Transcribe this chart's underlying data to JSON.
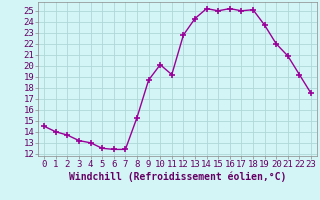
{
  "x": [
    0,
    1,
    2,
    3,
    4,
    5,
    6,
    7,
    8,
    9,
    10,
    11,
    12,
    13,
    14,
    15,
    16,
    17,
    18,
    19,
    20,
    21,
    22,
    23
  ],
  "y": [
    14.5,
    14.0,
    13.7,
    13.2,
    13.0,
    12.5,
    12.4,
    12.4,
    15.3,
    18.7,
    20.1,
    19.2,
    22.8,
    24.3,
    25.2,
    25.0,
    25.2,
    25.0,
    25.1,
    23.7,
    22.0,
    20.9,
    19.2,
    17.5
  ],
  "line_color": "#990099",
  "marker": "+",
  "marker_size": 5,
  "linewidth": 1.0,
  "bg_color": "#d4f5f5",
  "grid_color": "#b0d8d8",
  "xlabel": "Windchill (Refroidissement éolien,°C)",
  "xlim": [
    -0.5,
    23.5
  ],
  "ylim": [
    11.8,
    25.8
  ],
  "xticks": [
    0,
    1,
    2,
    3,
    4,
    5,
    6,
    7,
    8,
    9,
    10,
    11,
    12,
    13,
    14,
    15,
    16,
    17,
    18,
    19,
    20,
    21,
    22,
    23
  ],
  "yticks": [
    12,
    13,
    14,
    15,
    16,
    17,
    18,
    19,
    20,
    21,
    22,
    23,
    24,
    25
  ],
  "tick_fontsize": 6.5,
  "xlabel_fontsize": 7
}
